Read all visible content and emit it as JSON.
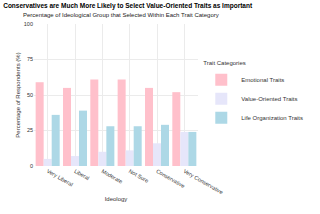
{
  "chart_data": {
    "type": "bar",
    "title": "Conservatives are Much More Likely to Select Value-Oriented Traits as Important",
    "subtitle": "Percentage of Ideological Group that Selected Within Each Trait Category",
    "x_label": "Ideology",
    "y_label": "Percentage of Respondents (%)",
    "legend_title": "Trait Categories",
    "categories": [
      "Very Liberal",
      "Liberal",
      "Moderate",
      "Not Sure",
      "Conservative",
      "Very Conservative"
    ],
    "series": [
      {
        "name": "Emotional Traits",
        "color": "#ffc0cb",
        "values": [
          59,
          55,
          61,
          61,
          55,
          52
        ]
      },
      {
        "name": "Value-Oriented Traits",
        "color": "#e6e6fa",
        "values": [
          5,
          7,
          10,
          11,
          16,
          24
        ]
      },
      {
        "name": "Life Organization Traits",
        "color": "#add8e6",
        "values": [
          36,
          39,
          28,
          28,
          29,
          24
        ]
      }
    ],
    "ylim": [
      0,
      100
    ],
    "yticks": [
      0,
      25,
      50,
      75,
      100
    ],
    "grid": true,
    "legend": "right"
  }
}
